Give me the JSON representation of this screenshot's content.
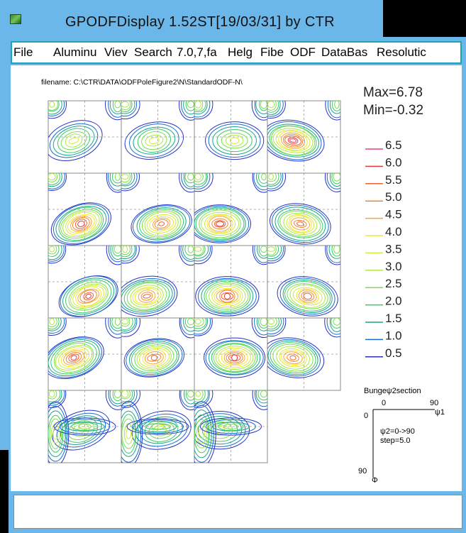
{
  "window": {
    "title": "GPODFDisplay 1.52ST[19/03/31] by CTR"
  },
  "menu": [
    "File",
    "Aluminum",
    "View",
    "Search",
    "7.0,7,fa",
    "Help",
    "Fiber",
    "ODF",
    "DataBase",
    "Resolution"
  ],
  "menu_display": [
    "File",
    "Aluminu",
    "Viev",
    "Search",
    "7.0,7,fa",
    "Helg",
    "Fibe",
    "ODF",
    "DataBas",
    "Resolutic"
  ],
  "plot": {
    "filename": "filename: C:\\CTR\\DATA\\ODFPoleFigure2\\N\\StandardODF-N\\",
    "max_label": "Max=6.78",
    "min_label": "Min=-0.32",
    "contour_levels": [
      {
        "value": "6.5",
        "color": "#e8417a"
      },
      {
        "value": "6.0",
        "color": "#e83a3a"
      },
      {
        "value": "5.5",
        "color": "#f0602a"
      },
      {
        "value": "5.0",
        "color": "#f2872c"
      },
      {
        "value": "4.5",
        "color": "#f5a82e"
      },
      {
        "value": "4.0",
        "color": "#f2e632"
      },
      {
        "value": "3.5",
        "color": "#d4ec3a"
      },
      {
        "value": "3.0",
        "color": "#aee84a"
      },
      {
        "value": "2.5",
        "color": "#78e04e"
      },
      {
        "value": "2.0",
        "color": "#3ec96a"
      },
      {
        "value": "1.5",
        "color": "#18a58a"
      },
      {
        "value": "1.0",
        "color": "#1a6bd2"
      },
      {
        "value": "0.5",
        "color": "#2430c8"
      }
    ],
    "section_info": {
      "title": "Bungeψ2section",
      "x_start": "0",
      "x_end": "90",
      "x_symbol": "ψ1",
      "y_start": "0",
      "y_end": "90",
      "y_symbol": "Φ",
      "psi2_range": "ψ2=0->90",
      "step": "step=5.0"
    }
  },
  "colors": {
    "titlebar": "#6bb7e9",
    "menu_border": "#1aa6b7",
    "grid_line": "#888888"
  }
}
